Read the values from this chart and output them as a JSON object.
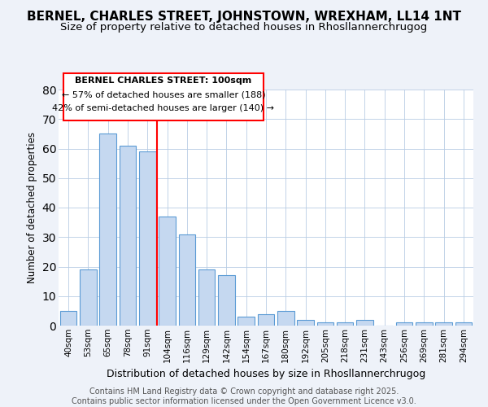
{
  "title": "BERNEL, CHARLES STREET, JOHNSTOWN, WREXHAM, LL14 1NT",
  "subtitle": "Size of property relative to detached houses in Rhosllannerchrugog",
  "xlabel": "Distribution of detached houses by size in Rhosllannerchrugog",
  "ylabel": "Number of detached properties",
  "categories": [
    "40sqm",
    "53sqm",
    "65sqm",
    "78sqm",
    "91sqm",
    "104sqm",
    "116sqm",
    "129sqm",
    "142sqm",
    "154sqm",
    "167sqm",
    "180sqm",
    "192sqm",
    "205sqm",
    "218sqm",
    "231sqm",
    "243sqm",
    "256sqm",
    "269sqm",
    "281sqm",
    "294sqm"
  ],
  "values": [
    5,
    19,
    65,
    61,
    59,
    37,
    31,
    19,
    17,
    3,
    4,
    5,
    2,
    1,
    1,
    2,
    0,
    1,
    1,
    1,
    1
  ],
  "bar_color": "#c5d8f0",
  "bar_edge_color": "#5b9bd5",
  "red_line_index": 5,
  "ylim": [
    0,
    80
  ],
  "yticks": [
    0,
    10,
    20,
    30,
    40,
    50,
    60,
    70,
    80
  ],
  "annotation_title": "BERNEL CHARLES STREET: 100sqm",
  "annotation_line1": "← 57% of detached houses are smaller (188)",
  "annotation_line2": "42% of semi-detached houses are larger (140) →",
  "footer1": "Contains HM Land Registry data © Crown copyright and database right 2025.",
  "footer2": "Contains public sector information licensed under the Open Government Licence v3.0.",
  "bg_color": "#eef2f9",
  "plot_bg_color": "#ffffff",
  "title_fontsize": 11,
  "subtitle_fontsize": 9.5,
  "annotation_fontsize": 8,
  "footer_fontsize": 7
}
